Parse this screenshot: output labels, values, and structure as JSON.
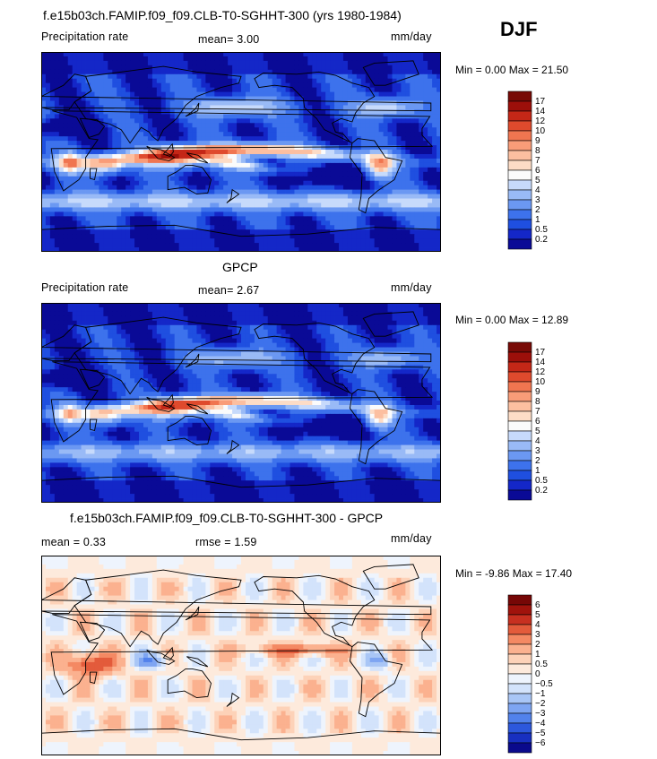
{
  "season": "DJF",
  "panels": [
    {
      "title": "f.e15b03ch.FAMIP.f09_f09.CLB-T0-SGHHT-300 (yrs 1980-1984)",
      "left": "Precipitation rate",
      "center": "mean=    3.00",
      "right": "mm/day",
      "minmax": "Min =    0.00 Max =  21.50",
      "legend": [
        "17",
        "14",
        "12",
        "10",
        "9",
        "8",
        "7",
        "6",
        "5",
        "4",
        "3",
        "2",
        "1",
        "0.5",
        "0.2"
      ]
    },
    {
      "title": "GPCP",
      "left": "Precipitation rate",
      "center": "mean=    2.67",
      "right": "mm/day",
      "minmax": "Min =    0.00 Max =  12.89",
      "legend": [
        "17",
        "14",
        "12",
        "10",
        "9",
        "8",
        "7",
        "6",
        "5",
        "4",
        "3",
        "2",
        "1",
        "0.5",
        "0.2"
      ]
    },
    {
      "title": "f.e15b03ch.FAMIP.f09_f09.CLB-T0-SGHHT-300 - GPCP",
      "left": "mean =    0.33",
      "center": "rmse =    1.59",
      "right": "mm/day",
      "minmax": "Min =  -9.86 Max =  17.40",
      "legend": [
        "6",
        "5",
        "4",
        "3",
        "2",
        "1",
        "0.5",
        "0",
        "−0.5",
        "−1",
        "−2",
        "−3",
        "−4",
        "−5",
        "−6"
      ]
    }
  ],
  "colors": {
    "precip_scale": [
      "#0a0a96",
      "#1427c8",
      "#1f4fe0",
      "#3d72ec",
      "#6b98f2",
      "#99baf6",
      "#c7dafb",
      "#fbfbfb",
      "#fddcc6",
      "#fcbfa0",
      "#f99c78",
      "#f07550",
      "#df4a2d",
      "#c42717",
      "#9c0f0a",
      "#780a06"
    ],
    "diff_scale": [
      "#0a0a8c",
      "#1830c0",
      "#2d58dc",
      "#5282ec",
      "#7ea5f2",
      "#a9c6f6",
      "#d3e3fb",
      "#eef4fd",
      "#fdeadc",
      "#fdd2b8",
      "#fbb18f",
      "#f48963",
      "#e35b3b",
      "#c73020",
      "#a0130c",
      "#760706"
    ]
  },
  "chart_data": [
    {
      "type": "heatmap",
      "title": "f.e15b03ch.FAMIP.f09_f09.CLB-T0-SGHHT-300 (yrs 1980-1984)",
      "variable": "Precipitation rate",
      "units": "mm/day",
      "season": "DJF",
      "mean": 3.0,
      "min": 0.0,
      "max": 21.5,
      "contour_levels": [
        0.2,
        0.5,
        1,
        2,
        3,
        4,
        5,
        6,
        7,
        8,
        9,
        10,
        12,
        14,
        17
      ]
    },
    {
      "type": "heatmap",
      "title": "GPCP",
      "variable": "Precipitation rate",
      "units": "mm/day",
      "season": "DJF",
      "mean": 2.67,
      "min": 0.0,
      "max": 12.89,
      "contour_levels": [
        0.2,
        0.5,
        1,
        2,
        3,
        4,
        5,
        6,
        7,
        8,
        9,
        10,
        12,
        14,
        17
      ]
    },
    {
      "type": "heatmap",
      "title": "f.e15b03ch.FAMIP.f09_f09.CLB-T0-SGHHT-300 - GPCP",
      "units": "mm/day",
      "season": "DJF",
      "mean": 0.33,
      "rmse": 1.59,
      "min": -9.86,
      "max": 17.4,
      "contour_levels": [
        -6,
        -5,
        -4,
        -3,
        -2,
        -1,
        -0.5,
        0,
        0.5,
        1,
        2,
        3,
        4,
        5,
        6
      ]
    }
  ]
}
